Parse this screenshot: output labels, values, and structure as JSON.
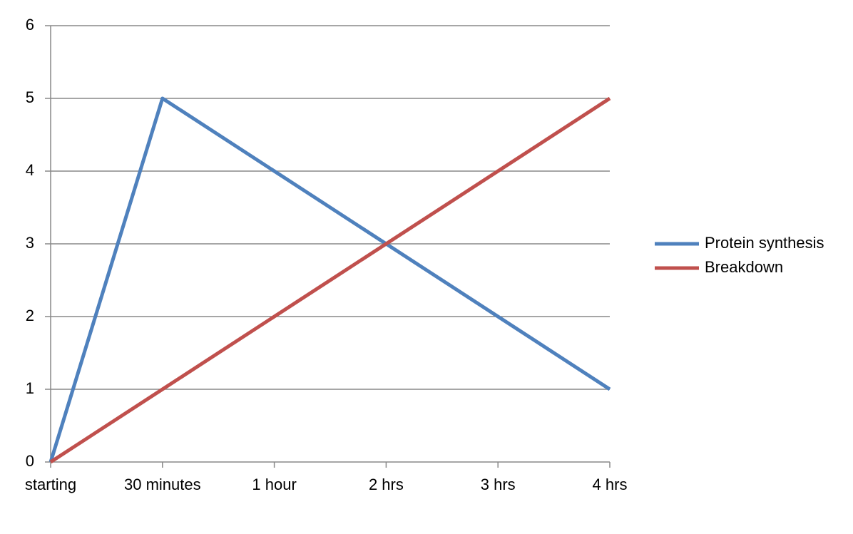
{
  "chart_data": {
    "type": "line",
    "categories": [
      "starting",
      "30 minutes",
      "1 hour",
      "2 hrs",
      "3 hrs",
      "4 hrs"
    ],
    "series": [
      {
        "name": "Protein synthesis",
        "color": "#4f81bd",
        "values": [
          0,
          5,
          4,
          3,
          2,
          1
        ]
      },
      {
        "name": "Breakdown",
        "color": "#c0504d",
        "values": [
          0,
          1,
          2,
          3,
          4,
          5
        ]
      }
    ],
    "ylim": [
      0,
      6
    ],
    "yticks": [
      0,
      1,
      2,
      3,
      4,
      5,
      6
    ],
    "grid": true,
    "legend": "right"
  }
}
